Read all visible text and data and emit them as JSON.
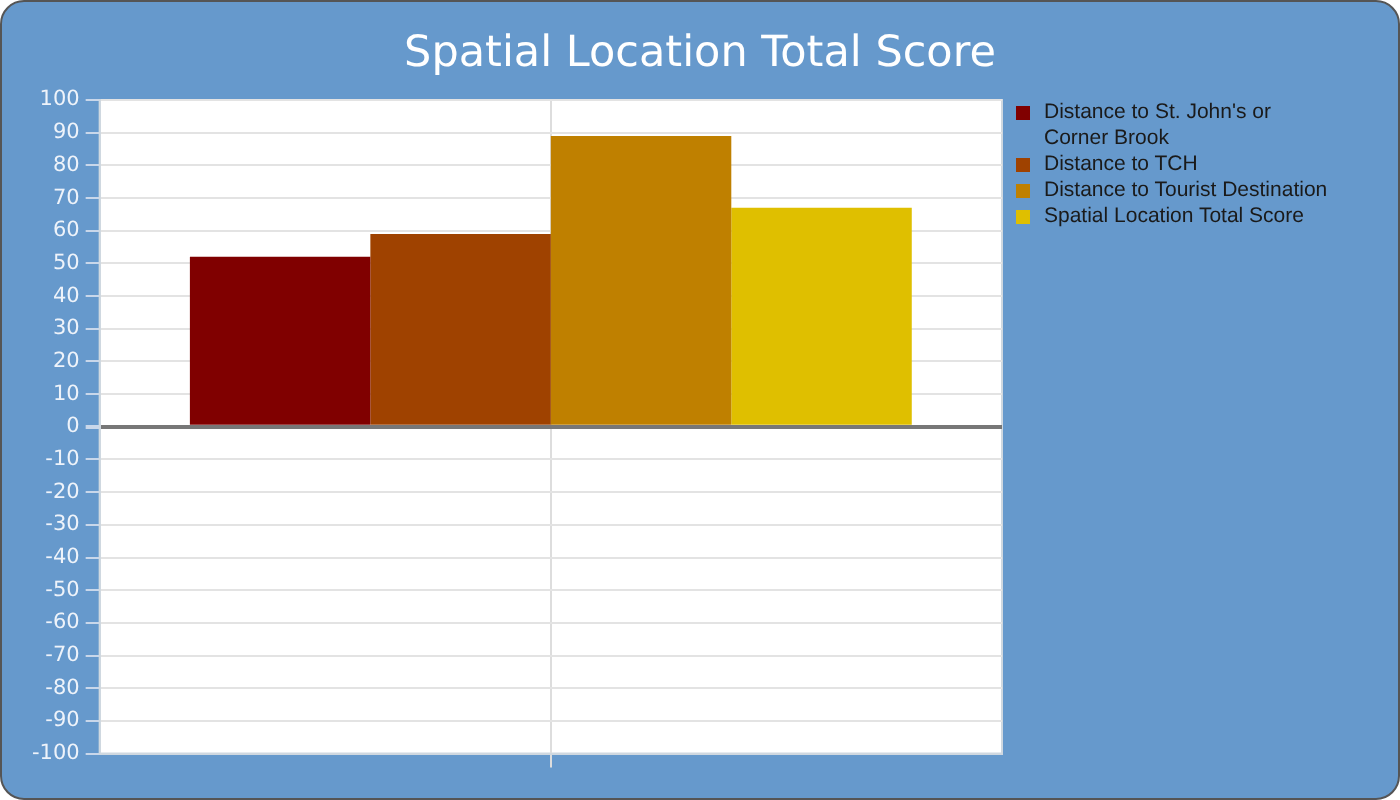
{
  "chart_data": {
    "type": "bar",
    "title": "Spatial Location Total Score",
    "categories": [
      null
    ],
    "series": [
      {
        "name": "Distance to St. John's or Corner Brook",
        "color": "#800000",
        "values": [
          52
        ]
      },
      {
        "name": "Distance to TCH",
        "color": "#9f4200",
        "values": [
          59
        ]
      },
      {
        "name": "Distance to Tourist Destination",
        "color": "#bf8000",
        "values": [
          89
        ]
      },
      {
        "name": "Spatial Location Total Score",
        "color": "#dfbf00",
        "values": [
          67
        ]
      }
    ],
    "ylim": [
      -100,
      100
    ],
    "yticks": [
      -100,
      -90,
      -80,
      -70,
      -60,
      -50,
      -40,
      -30,
      -20,
      -10,
      0,
      10,
      20,
      30,
      40,
      50,
      60,
      70,
      80,
      90,
      100
    ],
    "grid": true,
    "legend": "right"
  }
}
